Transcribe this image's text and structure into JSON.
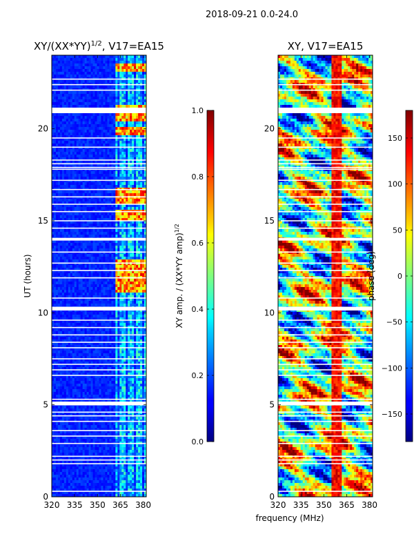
{
  "figure_title": "2018-09-21 0.0-24.0",
  "chart_data": [
    {
      "type": "heatmap",
      "title": "XY/(XX*YY)^{1/2}, V17=EA15",
      "title_main": "XY/(XX*YY)",
      "title_exp": "1/2",
      "title_tail": ", V17=EA15",
      "xlabel": "frequency (MHz)",
      "ylabel": "UT (hours)",
      "xlim": [
        320,
        382
      ],
      "ylim": [
        0,
        24
      ],
      "xticks": [
        320,
        335,
        350,
        365,
        380
      ],
      "yticks": [
        0,
        5,
        10,
        15,
        20
      ],
      "colorbar": {
        "label": "XY amp. / (XX*YY amp)^{1/2}",
        "label_main": "XY amp. / (XX*YY amp)",
        "label_exp": "1/2",
        "range": [
          0.0,
          1.0
        ],
        "ticks": [
          0.0,
          0.2,
          0.4,
          0.6,
          0.8,
          1.0
        ],
        "tick_labels": [
          "0.0",
          "0.2",
          "0.4",
          "0.6",
          "0.8",
          "1.0"
        ]
      },
      "bright_band_mhz": [
        362,
        382
      ],
      "bright_times_ut": [
        23.3,
        21.1,
        20.6,
        19.9,
        16.6,
        16.1,
        15.3,
        12.6,
        12.0,
        11.4
      ]
    },
    {
      "type": "heatmap",
      "title": "XY, V17=EA15",
      "xlabel": "frequency (MHz)",
      "ylabel": "",
      "xlim": [
        320,
        382
      ],
      "ylim": [
        0,
        24
      ],
      "xticks": [
        320,
        335,
        350,
        365,
        380
      ],
      "yticks": [
        0,
        5,
        10,
        15,
        20
      ],
      "colorbar": {
        "label": "phase (deg)",
        "range": [
          -180,
          180
        ],
        "ticks": [
          -150,
          -100,
          -50,
          0,
          50,
          100,
          150
        ],
        "tick_labels": [
          "−150",
          "−100",
          "−50",
          "0",
          "50",
          "100",
          "150"
        ]
      }
    }
  ],
  "flagged_times_ut": [
    0.3,
    1.8,
    2.0,
    2.2,
    2.9,
    3.3,
    3.6,
    4.1,
    4.4,
    4.6,
    5.0,
    5.3,
    6.6,
    6.9,
    7.2,
    7.5,
    8.1,
    8.4,
    8.8,
    9.2,
    9.6,
    10.3,
    10.8,
    11.9,
    12.3,
    12.7,
    13.3,
    14.0,
    14.6,
    15.0,
    15.5,
    15.9,
    16.3,
    16.7,
    17.2,
    17.8,
    17.9,
    18.1,
    18.3,
    19.0,
    19.5,
    21.0,
    22.1,
    22.4,
    22.7
  ],
  "flagged_thick_ut": [
    5.1,
    10.2,
    14.0,
    21.0
  ]
}
